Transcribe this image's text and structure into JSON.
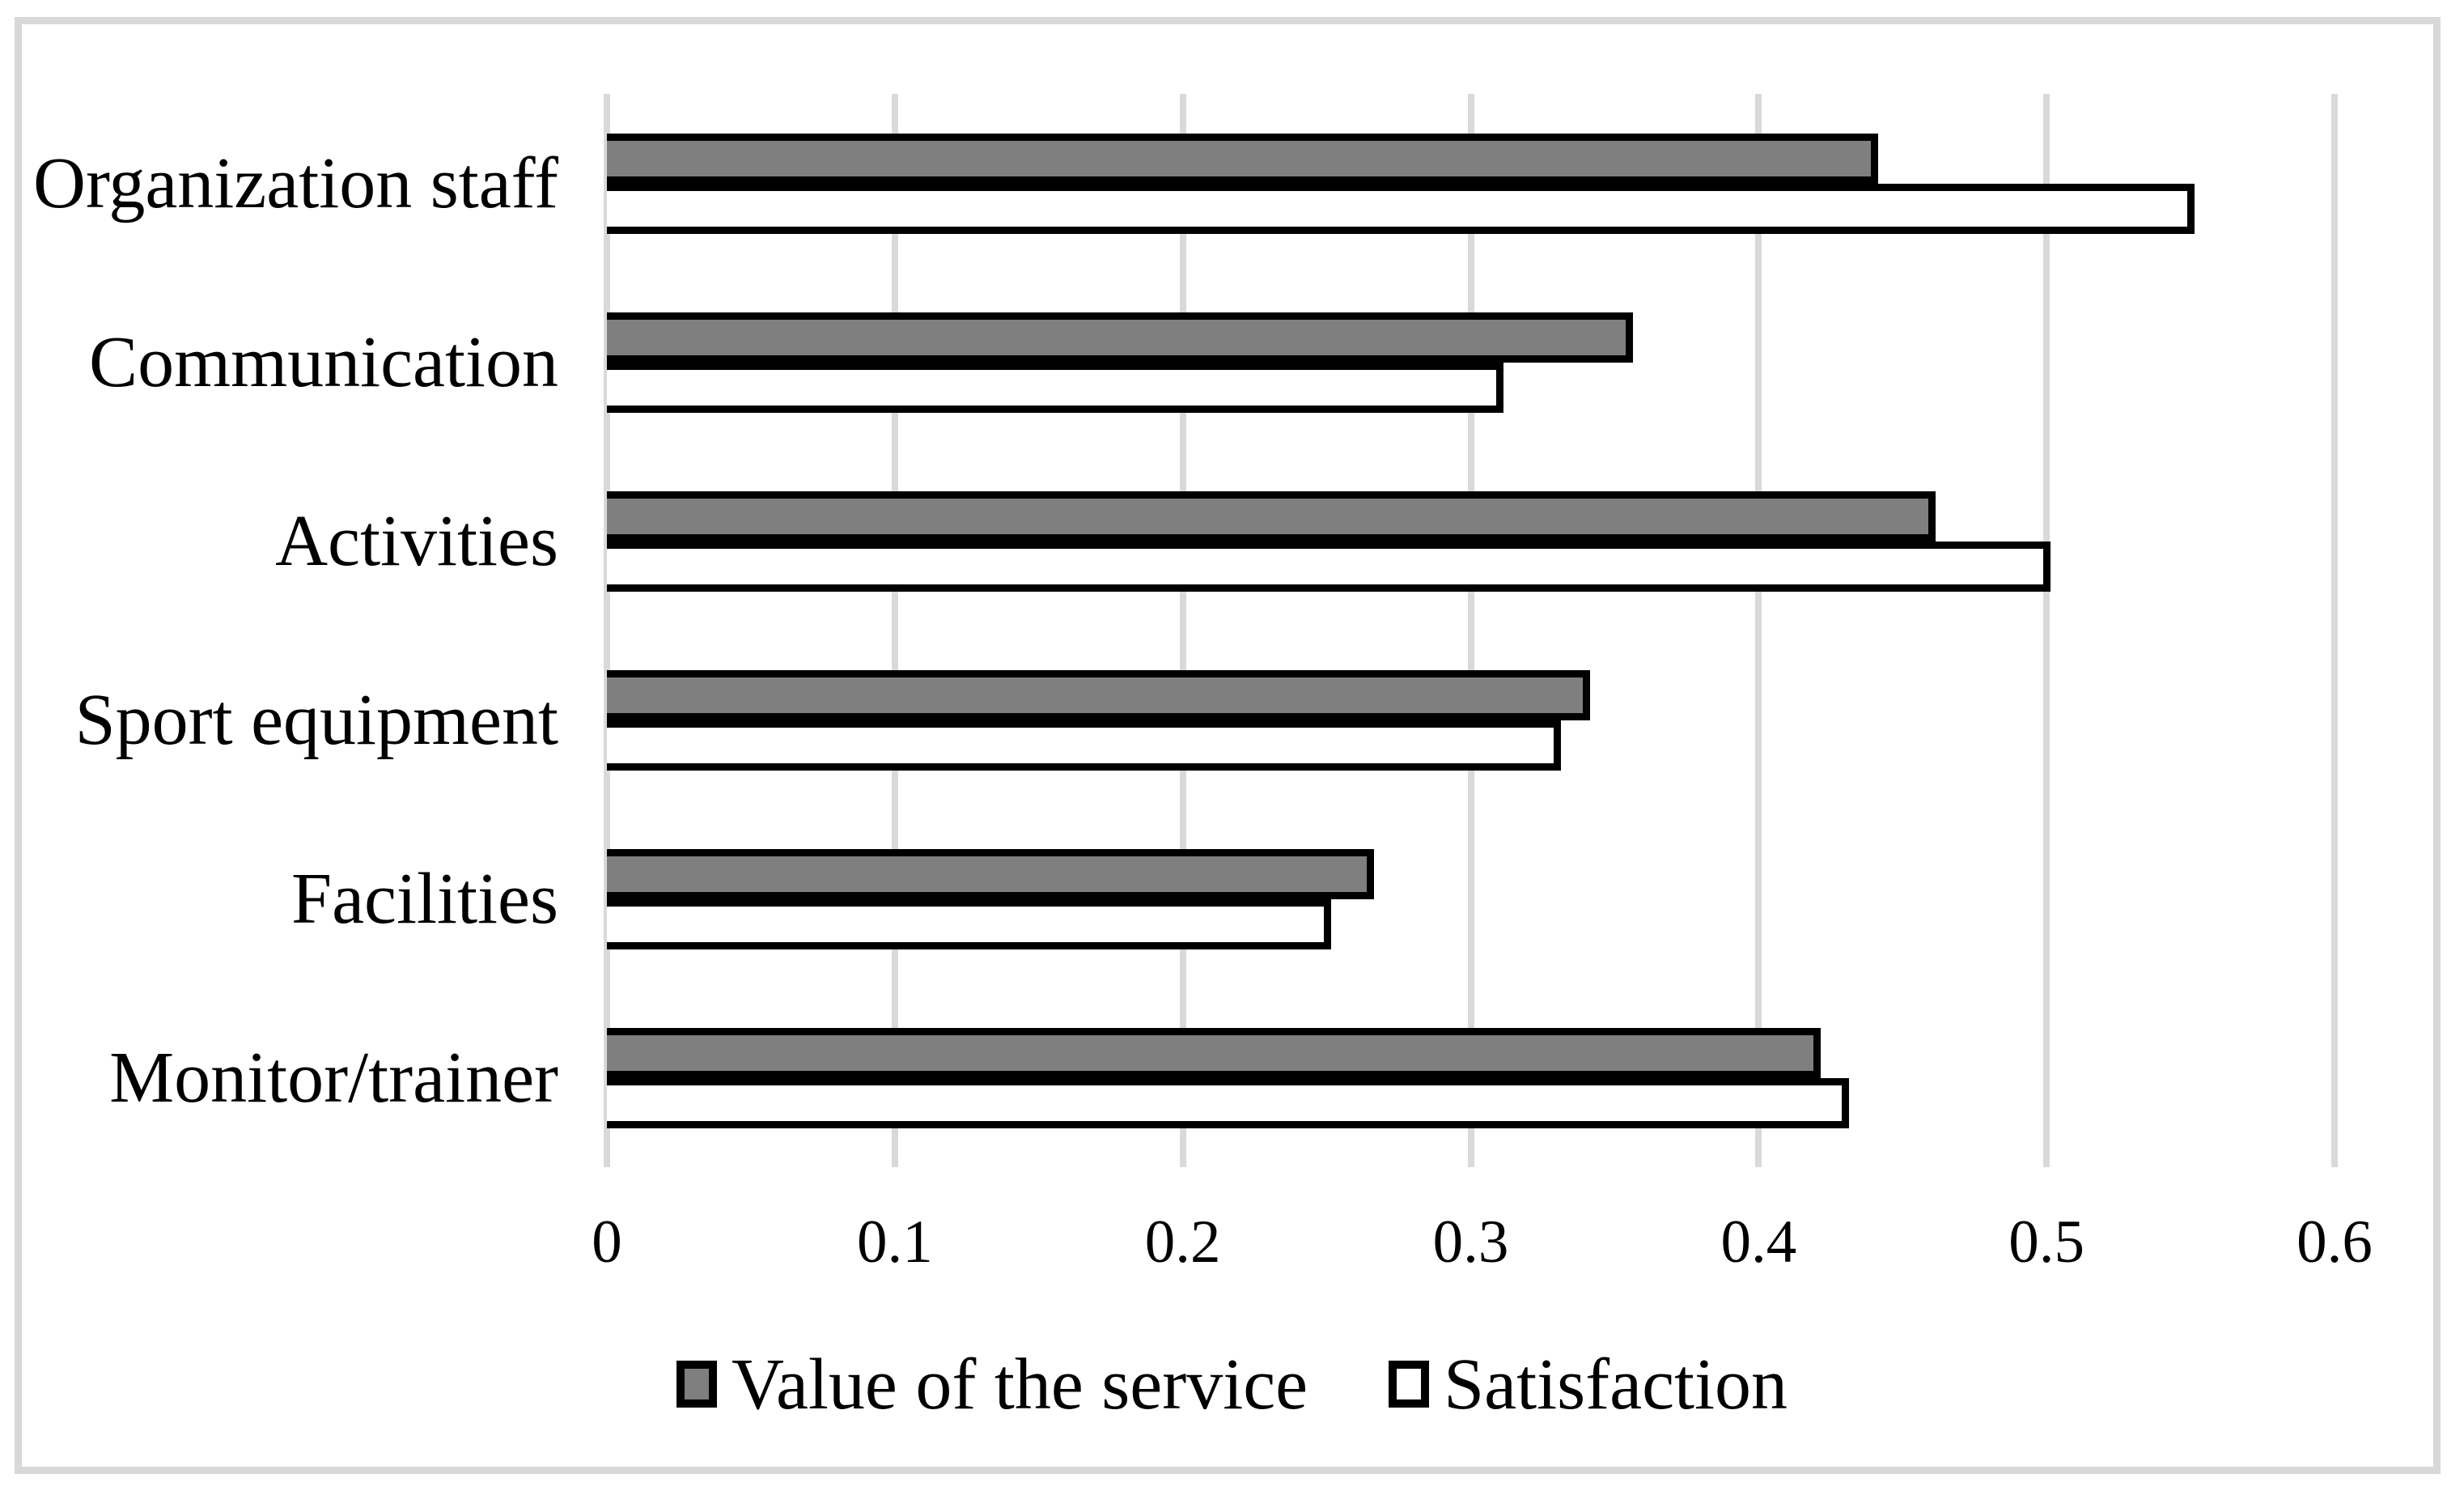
{
  "figure": {
    "background": "#ffffff",
    "frame_color": "#d8d8d8"
  },
  "chart_data": {
    "type": "bar",
    "orientation": "horizontal",
    "title": "",
    "xlabel": "",
    "ylabel": "",
    "categories": [
      "Organization staff",
      "Communication",
      "Activities",
      "Sport equipment",
      "Facilities",
      "Monitor/trainer"
    ],
    "series": [
      {
        "name": "Value of the service",
        "fill": "#7f7f7f",
        "values": [
          0.44,
          0.355,
          0.46,
          0.34,
          0.265,
          0.42
        ]
      },
      {
        "name": "Satisfaction",
        "fill": "#ffffff",
        "values": [
          0.55,
          0.31,
          0.5,
          0.33,
          0.25,
          0.43
        ]
      }
    ],
    "x_ticks": [
      "0",
      "0.1",
      "0.2",
      "0.3",
      "0.4",
      "0.5",
      "0.6"
    ],
    "x_tick_values": [
      0,
      0.1,
      0.2,
      0.3,
      0.4,
      0.5,
      0.6
    ],
    "xlim": [
      0,
      0.6
    ],
    "grid": true,
    "gridline_color": "#d9d9d9",
    "bar_outline_color": "#000000",
    "legend_position": "bottom"
  }
}
